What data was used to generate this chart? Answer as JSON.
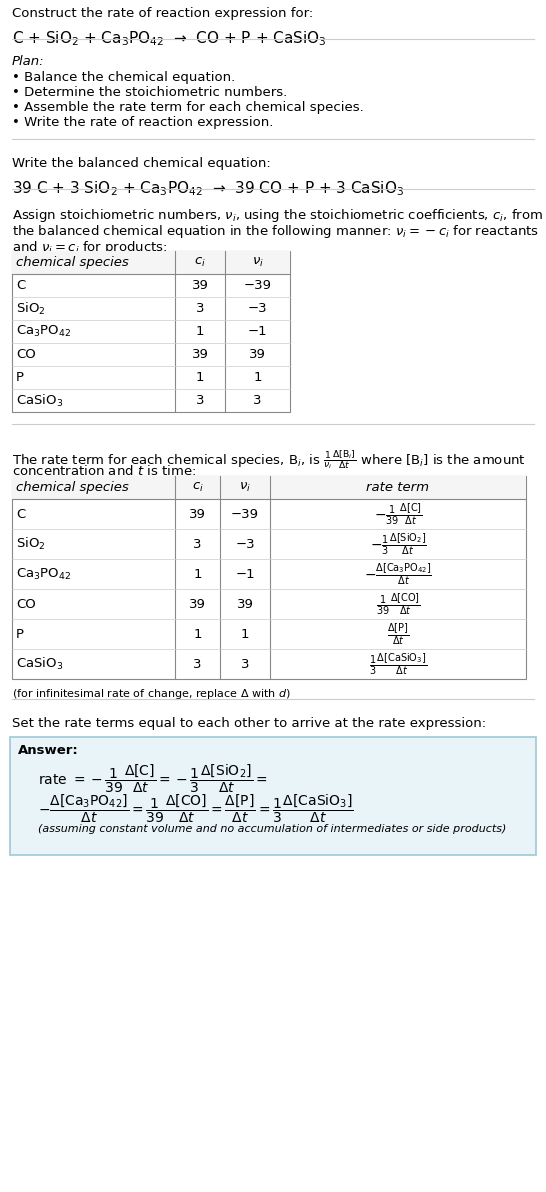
{
  "title_text": "Construct the rate of reaction expression for:",
  "reaction_unbalanced": "C + SiO$_2$ + Ca$_3$PO$_{42}$  →  CO + P + CaSiO$_3$",
  "plan_header": "Plan:",
  "plan_items": [
    "• Balance the chemical equation.",
    "• Determine the stoichiometric numbers.",
    "• Assemble the rate term for each chemical species.",
    "• Write the rate of reaction expression."
  ],
  "balanced_header": "Write the balanced chemical equation:",
  "reaction_balanced": "39 C + 3 SiO$_2$ + Ca$_3$PO$_{42}$  →  39 CO + P + 3 CaSiO$_3$",
  "stoich_intro_1": "Assign stoichiometric numbers, $\\nu_i$, using the stoichiometric coefficients, $c_i$, from",
  "stoich_intro_2": "the balanced chemical equation in the following manner: $\\nu_i = -c_i$ for reactants",
  "stoich_intro_3": "and $\\nu_i = c_i$ for products:",
  "table1_col0_header": "chemical species",
  "table1_col1_header": "$c_i$",
  "table1_col2_header": "$\\nu_i$",
  "table1_rows": [
    [
      "C",
      "39",
      "−39"
    ],
    [
      "SiO$_2$",
      "3",
      "−3"
    ],
    [
      "Ca$_3$PO$_{42}$",
      "1",
      "−1"
    ],
    [
      "CO",
      "39",
      "39"
    ],
    [
      "P",
      "1",
      "1"
    ],
    [
      "CaSiO$_3$",
      "3",
      "3"
    ]
  ],
  "rate_intro_1": "The rate term for each chemical species, B$_i$, is $\\frac{1}{\\nu_i}\\frac{\\Delta[\\mathrm{B}_i]}{\\Delta t}$ where [B$_i$] is the amount",
  "rate_intro_2": "concentration and $t$ is time:",
  "table2_col0_header": "chemical species",
  "table2_col1_header": "$c_i$",
  "table2_col2_header": "$\\nu_i$",
  "table2_col3_header": "rate term",
  "table2_rows": [
    [
      "C",
      "39",
      "−39",
      "$-\\frac{1}{39}\\frac{\\Delta[\\mathrm{C}]}{\\Delta t}$"
    ],
    [
      "SiO$_2$",
      "3",
      "−3",
      "$-\\frac{1}{3}\\frac{\\Delta[\\mathrm{SiO_2}]}{\\Delta t}$"
    ],
    [
      "Ca$_3$PO$_{42}$",
      "1",
      "−1",
      "$-\\frac{\\Delta[\\mathrm{Ca_3PO_{42}}]}{\\Delta t}$"
    ],
    [
      "CO",
      "39",
      "39",
      "$\\frac{1}{39}\\frac{\\Delta[\\mathrm{CO}]}{\\Delta t}$"
    ],
    [
      "P",
      "1",
      "1",
      "$\\frac{\\Delta[\\mathrm{P}]}{\\Delta t}$"
    ],
    [
      "CaSiO$_3$",
      "3",
      "3",
      "$\\frac{1}{3}\\frac{\\Delta[\\mathrm{CaSiO_3}]}{\\Delta t}$"
    ]
  ],
  "infinitesimal_note": "(for infinitesimal rate of change, replace Δ with $d$)",
  "set_rate_text": "Set the rate terms equal to each other to arrive at the rate expression:",
  "answer_label": "Answer:",
  "answer_line1": "rate $= -\\dfrac{1}{39}\\dfrac{\\Delta[\\mathrm{C}]}{\\Delta t} = -\\dfrac{1}{3}\\dfrac{\\Delta[\\mathrm{SiO_2}]}{\\Delta t} =$",
  "answer_line2": "$-\\dfrac{\\Delta[\\mathrm{Ca_3PO_{42}}]}{\\Delta t} = \\dfrac{1}{39}\\dfrac{\\Delta[\\mathrm{CO}]}{\\Delta t} = \\dfrac{\\Delta[\\mathrm{P}]}{\\Delta t} = \\dfrac{1}{3}\\dfrac{\\Delta[\\mathrm{CaSiO_3}]}{\\Delta t}$",
  "answer_note": "(assuming constant volume and no accumulation of intermediates or side products)",
  "bg_color": "#ffffff",
  "answer_box_color": "#e8f4f8",
  "answer_box_border": "#a0c8d8",
  "table_border_color": "#888888",
  "table_row_sep_color": "#cccccc",
  "hline_color": "#cccccc",
  "fs": 9.5,
  "fs_small": 8.0,
  "fs_large": 11.0,
  "fs_answer": 9.5
}
